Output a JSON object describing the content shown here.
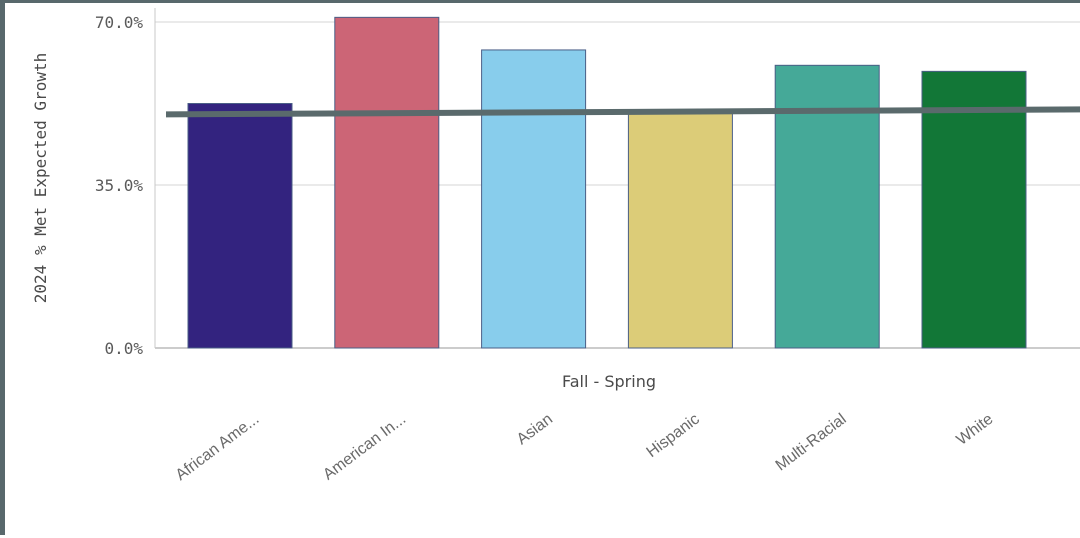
{
  "chart_data": {
    "type": "bar",
    "xlabel": "Fall - Spring",
    "ylabel": "2024 % Met Expected Growth",
    "ylim": [
      0,
      70
    ],
    "yticks": [
      {
        "value": 0,
        "label": "0.0%"
      },
      {
        "value": 35,
        "label": "35.0%"
      },
      {
        "value": 70,
        "label": "70.0%"
      }
    ],
    "grid": true,
    "categories": [
      "African Ame...",
      "American In...",
      "Asian",
      "Hispanic",
      "Multi-Racial",
      "White"
    ],
    "values": [
      52.5,
      71.0,
      64.0,
      50.5,
      60.7,
      59.4
    ],
    "colors": [
      "#33237f",
      "#cc6576",
      "#88cdec",
      "#dccc78",
      "#45a998",
      "#127737"
    ],
    "reference_line": {
      "value": 50.7,
      "color": "#5a6a6c"
    }
  }
}
